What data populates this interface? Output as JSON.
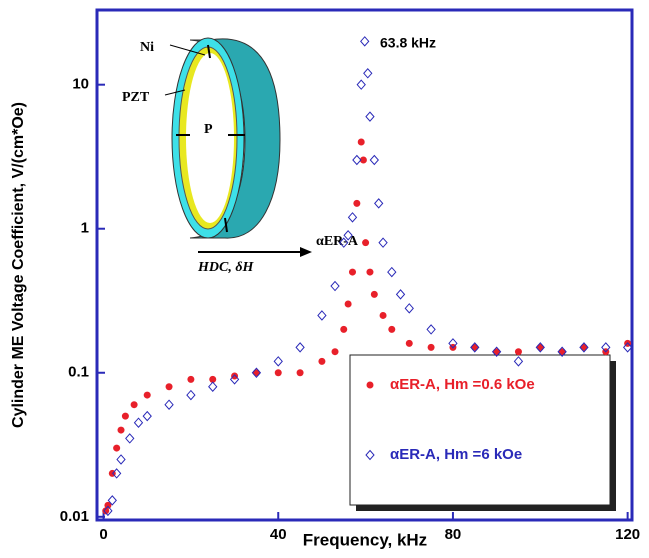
{
  "chart_data": {
    "type": "scatter",
    "x_label": "Frequency, kHz",
    "y_label": "Cylinder ME Voltage Coefficient, V/(cm*Oe)",
    "xlim": [
      -1.5,
      121
    ],
    "xticks": [
      0,
      40,
      80,
      120
    ],
    "ylim": [
      0.0095,
      33
    ],
    "yticks": [
      0.01,
      0.1,
      1,
      10
    ],
    "log_y": true,
    "legend": "lower right",
    "annotations": {
      "peak": "63.8 kHz",
      "ni": "Ni",
      "pzt": "PZT",
      "p": "P",
      "field": "HDC, δH",
      "coeff": "αER-A"
    },
    "series": [
      {
        "name": "αER-A, Hm =0.6 kOe",
        "color": "#e8202a",
        "marker": "circle",
        "x": [
          0.5,
          1,
          2,
          3,
          4,
          5,
          7,
          10,
          15,
          20,
          25,
          30,
          35,
          40,
          45,
          50,
          53,
          55,
          56,
          57,
          58,
          59,
          59.5,
          60,
          61,
          62,
          64,
          66,
          70,
          75,
          80,
          85,
          90,
          95,
          100,
          105,
          110,
          115,
          120
        ],
        "values": [
          0.011,
          0.012,
          0.02,
          0.03,
          0.04,
          0.05,
          0.06,
          0.07,
          0.08,
          0.09,
          0.09,
          0.095,
          0.1,
          0.1,
          0.1,
          0.12,
          0.14,
          0.2,
          0.3,
          0.5,
          1.5,
          4,
          3,
          0.8,
          0.5,
          0.35,
          0.25,
          0.2,
          0.16,
          0.15,
          0.15,
          0.15,
          0.14,
          0.14,
          0.15,
          0.14,
          0.15,
          0.14,
          0.16
        ]
      },
      {
        "name": "αER-A, Hm =6 kOe",
        "color": "#2a2ab8",
        "marker": "diamond",
        "x": [
          1,
          2,
          3,
          4,
          6,
          8,
          10,
          15,
          20,
          25,
          30,
          35,
          40,
          45,
          50,
          53,
          55,
          56,
          57,
          58,
          59,
          59.8,
          60.5,
          61,
          62,
          63,
          64,
          66,
          68,
          70,
          75,
          80,
          85,
          90,
          95,
          100,
          105,
          110,
          115,
          120
        ],
        "values": [
          0.011,
          0.013,
          0.02,
          0.025,
          0.035,
          0.045,
          0.05,
          0.06,
          0.07,
          0.08,
          0.09,
          0.1,
          0.12,
          0.15,
          0.25,
          0.4,
          0.8,
          0.9,
          1.2,
          3,
          10,
          20,
          12,
          6,
          3,
          1.5,
          0.8,
          0.5,
          0.35,
          0.28,
          0.2,
          0.16,
          0.15,
          0.14,
          0.12,
          0.15,
          0.14,
          0.15,
          0.15,
          0.15
        ]
      }
    ]
  }
}
